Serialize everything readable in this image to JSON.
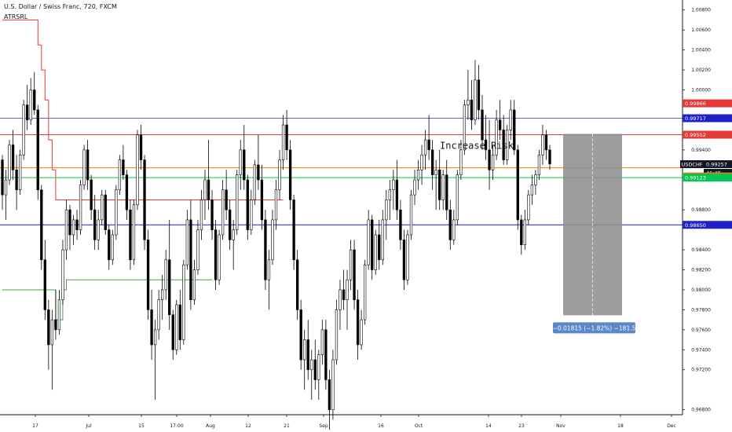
{
  "header": {
    "title": "U.S. Dollar / Swiss Franc, 720, FXCM",
    "indicator": "ATRSRL"
  },
  "colors": {
    "up_candle": "#ffffff",
    "down_candle": "#000000",
    "red_line": "#e53935",
    "green_line": "#43a047",
    "blue_line": "#1e22c8",
    "blue_line_light": "#5b5fe0",
    "orange_line": "#f57c00",
    "green_hline": "#00c853",
    "measure_box": "#8c8c8c",
    "measure_label": "#5b86c8"
  },
  "chart_data": {
    "type": "candlestick",
    "symbol": "USDCHF",
    "y_ticks": [
      "1.00800",
      "1.00600",
      "1.00400",
      "1.00200",
      "1.00000",
      "0.99866",
      "0.99717",
      "0.99552",
      "0.99400",
      "0.99257",
      "0.99221",
      "0.99123",
      "0.98800",
      "0.98650",
      "0.98400",
      "0.98200",
      "0.98000",
      "0.97800",
      "0.97600",
      "0.97400",
      "0.97200",
      "0.96800"
    ],
    "x_ticks": [
      "17",
      "Jul",
      "15",
      "17:00",
      "Aug",
      "12",
      "21",
      "Sep",
      "16",
      "Oct",
      "14",
      "23",
      "Nov",
      "18",
      "Dec"
    ],
    "ylim": [
      0.9675,
      1.009
    ],
    "price_tags": [
      {
        "label": "0.99866",
        "value": 0.99866,
        "color": "#e53935"
      },
      {
        "label": "0.99717",
        "value": 0.99717,
        "color": "#1e22c8"
      },
      {
        "label": "0.99552",
        "value": 0.99552,
        "color": "#e53935"
      },
      {
        "label": "USDCHF",
        "value": 0.99257,
        "color": "#131722",
        "is_symbol": true
      },
      {
        "label": "0.99257",
        "value": 0.99257,
        "color": "#131722"
      },
      {
        "label": "46:49",
        "value": 0.9918,
        "color": "#131722"
      },
      {
        "label": "0.99221",
        "value": 0.99221,
        "color": "#f57c00"
      },
      {
        "label": "0.99123",
        "value": 0.99123,
        "color": "#00c853"
      },
      {
        "label": "0.98650",
        "value": 0.9865,
        "color": "#1e22c8"
      }
    ],
    "horizontal_lines": [
      {
        "value": 0.99717,
        "color": "#5b5fe0"
      },
      {
        "value": 0.99552,
        "color": "#e53935"
      },
      {
        "value": 0.99221,
        "color": "#f57c00"
      },
      {
        "value": 0.99123,
        "color": "#00c853"
      },
      {
        "value": 0.9865,
        "color": "#1e22c8"
      }
    ],
    "annotation": "Increase Risk",
    "measure": {
      "label": "−0.01815 (−1.82%) −181.5",
      "top_value": 0.9956,
      "bottom_value": 0.97745
    },
    "candles": [
      [
        0.993,
        0.9935,
        0.988,
        0.9895
      ],
      [
        0.9895,
        0.992,
        0.987,
        0.991
      ],
      [
        0.991,
        0.995,
        0.9905,
        0.9945
      ],
      [
        0.9945,
        0.996,
        0.991,
        0.992
      ],
      [
        0.992,
        0.9935,
        0.988,
        0.99
      ],
      [
        0.99,
        0.994,
        0.9895,
        0.9935
      ],
      [
        0.9935,
        0.999,
        0.993,
        0.9985
      ],
      [
        0.9985,
        1.0005,
        0.996,
        0.997
      ],
      [
        0.997,
        1.0012,
        0.9965,
        1.0
      ],
      [
        1.0,
        1.0018,
        0.9975,
        0.998
      ],
      [
        0.998,
        0.9985,
        0.989,
        0.99
      ],
      [
        0.99,
        0.9905,
        0.982,
        0.983
      ],
      [
        0.983,
        0.985,
        0.977,
        0.978
      ],
      [
        0.978,
        0.979,
        0.972,
        0.9745
      ],
      [
        0.9745,
        0.978,
        0.97,
        0.977
      ],
      [
        0.977,
        0.98,
        0.975,
        0.976
      ],
      [
        0.976,
        0.98,
        0.9755,
        0.979
      ],
      [
        0.979,
        0.985,
        0.9785,
        0.984
      ],
      [
        0.984,
        0.989,
        0.983,
        0.988
      ],
      [
        0.988,
        0.9885,
        0.984,
        0.9855
      ],
      [
        0.9855,
        0.9875,
        0.9845,
        0.987
      ],
      [
        0.987,
        0.988,
        0.985,
        0.986
      ],
      [
        0.986,
        0.991,
        0.9855,
        0.9905
      ],
      [
        0.9905,
        0.9945,
        0.99,
        0.994
      ],
      [
        0.994,
        0.995,
        0.99,
        0.991
      ],
      [
        0.991,
        0.9915,
        0.987,
        0.988
      ],
      [
        0.988,
        0.9895,
        0.984,
        0.985
      ],
      [
        0.985,
        0.988,
        0.984,
        0.987
      ],
      [
        0.987,
        0.99,
        0.9865,
        0.9895
      ],
      [
        0.9895,
        0.99,
        0.9855,
        0.986
      ],
      [
        0.986,
        0.9865,
        0.982,
        0.983
      ],
      [
        0.983,
        0.986,
        0.9825,
        0.9855
      ],
      [
        0.9855,
        0.9905,
        0.985,
        0.99
      ],
      [
        0.99,
        0.9935,
        0.9895,
        0.993
      ],
      [
        0.993,
        0.9945,
        0.991,
        0.9915
      ],
      [
        0.9915,
        0.992,
        0.987,
        0.988
      ],
      [
        0.988,
        0.989,
        0.982,
        0.983
      ],
      [
        0.983,
        0.989,
        0.9825,
        0.9885
      ],
      [
        0.9885,
        0.996,
        0.988,
        0.9955
      ],
      [
        0.9955,
        0.9965,
        0.992,
        0.993
      ],
      [
        0.993,
        0.9935,
        0.984,
        0.985
      ],
      [
        0.985,
        0.986,
        0.977,
        0.978
      ],
      [
        0.978,
        0.98,
        0.973,
        0.9745
      ],
      [
        0.9745,
        0.977,
        0.969,
        0.976
      ],
      [
        0.976,
        0.98,
        0.975,
        0.979
      ],
      [
        0.979,
        0.9815,
        0.977,
        0.98
      ],
      [
        0.98,
        0.984,
        0.979,
        0.983
      ],
      [
        0.983,
        0.987,
        0.976,
        0.9775
      ],
      [
        0.9775,
        0.978,
        0.973,
        0.974
      ],
      [
        0.974,
        0.979,
        0.9735,
        0.9785
      ],
      [
        0.9785,
        0.98,
        0.974,
        0.975
      ],
      [
        0.975,
        0.983,
        0.9745,
        0.9825
      ],
      [
        0.9825,
        0.988,
        0.982,
        0.987
      ],
      [
        0.987,
        0.989,
        0.978,
        0.979
      ],
      [
        0.979,
        0.983,
        0.9785,
        0.982
      ],
      [
        0.982,
        0.987,
        0.9815,
        0.986
      ],
      [
        0.986,
        0.99,
        0.985,
        0.989
      ],
      [
        0.989,
        0.992,
        0.987,
        0.991
      ],
      [
        0.991,
        0.995,
        0.988,
        0.989
      ],
      [
        0.989,
        0.99,
        0.985,
        0.986
      ],
      [
        0.986,
        0.987,
        0.98,
        0.981
      ],
      [
        0.981,
        0.986,
        0.9805,
        0.9855
      ],
      [
        0.9855,
        0.991,
        0.985,
        0.99
      ],
      [
        0.99,
        0.992,
        0.987,
        0.988
      ],
      [
        0.988,
        0.989,
        0.984,
        0.985
      ],
      [
        0.985,
        0.987,
        0.982,
        0.986
      ],
      [
        0.986,
        0.992,
        0.9855,
        0.9915
      ],
      [
        0.9915,
        0.995,
        0.99,
        0.994
      ],
      [
        0.994,
        0.9965,
        0.99,
        0.991
      ],
      [
        0.991,
        0.9915,
        0.985,
        0.986
      ],
      [
        0.986,
        0.99,
        0.9855,
        0.989
      ],
      [
        0.989,
        0.993,
        0.9885,
        0.9925
      ],
      [
        0.9925,
        0.9955,
        0.99,
        0.991
      ],
      [
        0.991,
        0.9925,
        0.986,
        0.987
      ],
      [
        0.987,
        0.988,
        0.98,
        0.981
      ],
      [
        0.981,
        0.984,
        0.978,
        0.983
      ],
      [
        0.983,
        0.988,
        0.9825,
        0.987
      ],
      [
        0.987,
        0.991,
        0.986,
        0.99
      ],
      [
        0.99,
        0.994,
        0.989,
        0.993
      ],
      [
        0.993,
        0.9975,
        0.992,
        0.9965
      ],
      [
        0.9965,
        0.998,
        0.993,
        0.994
      ],
      [
        0.994,
        0.995,
        0.988,
        0.989
      ],
      [
        0.989,
        0.9895,
        0.982,
        0.983
      ],
      [
        0.983,
        0.984,
        0.977,
        0.978
      ],
      [
        0.978,
        0.979,
        0.972,
        0.973
      ],
      [
        0.973,
        0.976,
        0.97,
        0.975
      ],
      [
        0.975,
        0.977,
        0.971,
        0.972
      ],
      [
        0.972,
        0.974,
        0.969,
        0.973
      ],
      [
        0.973,
        0.975,
        0.97,
        0.971
      ],
      [
        0.971,
        0.974,
        0.969,
        0.9735
      ],
      [
        0.9735,
        0.977,
        0.9725,
        0.976
      ],
      [
        0.976,
        0.977,
        0.97,
        0.971
      ],
      [
        0.971,
        0.972,
        0.966,
        0.968
      ],
      [
        0.968,
        0.974,
        0.967,
        0.973
      ],
      [
        0.973,
        0.979,
        0.9725,
        0.978
      ],
      [
        0.978,
        0.981,
        0.976,
        0.98
      ],
      [
        0.98,
        0.982,
        0.978,
        0.979
      ],
      [
        0.979,
        0.982,
        0.976,
        0.981
      ],
      [
        0.981,
        0.985,
        0.98,
        0.984
      ],
      [
        0.984,
        0.985,
        0.978,
        0.979
      ],
      [
        0.979,
        0.98,
        0.973,
        0.9745
      ],
      [
        0.9745,
        0.978,
        0.974,
        0.977
      ],
      [
        0.977,
        0.983,
        0.9765,
        0.9825
      ],
      [
        0.9825,
        0.988,
        0.982,
        0.987
      ],
      [
        0.987,
        0.9875,
        0.981,
        0.982
      ],
      [
        0.982,
        0.986,
        0.9815,
        0.9855
      ],
      [
        0.9855,
        0.987,
        0.982,
        0.983
      ],
      [
        0.983,
        0.988,
        0.9825,
        0.987
      ],
      [
        0.987,
        0.99,
        0.985,
        0.989
      ],
      [
        0.989,
        0.991,
        0.987,
        0.99
      ],
      [
        0.99,
        0.992,
        0.988,
        0.991
      ],
      [
        0.991,
        0.993,
        0.987,
        0.988
      ],
      [
        0.988,
        0.989,
        0.984,
        0.985
      ],
      [
        0.985,
        0.986,
        0.98,
        0.981
      ],
      [
        0.981,
        0.986,
        0.9805,
        0.9855
      ],
      [
        0.9855,
        0.99,
        0.985,
        0.9895
      ],
      [
        0.9895,
        0.992,
        0.9885,
        0.991
      ],
      [
        0.991,
        0.993,
        0.99,
        0.992
      ],
      [
        0.992,
        0.9945,
        0.9905,
        0.9935
      ],
      [
        0.9935,
        0.996,
        0.992,
        0.995
      ],
      [
        0.995,
        0.9975,
        0.993,
        0.994
      ],
      [
        0.994,
        0.995,
        0.99,
        0.9915
      ],
      [
        0.9915,
        0.993,
        0.988,
        0.992
      ],
      [
        0.992,
        0.994,
        0.988,
        0.989
      ],
      [
        0.989,
        0.992,
        0.988,
        0.9915
      ],
      [
        0.9915,
        0.993,
        0.987,
        0.988
      ],
      [
        0.988,
        0.989,
        0.984,
        0.985
      ],
      [
        0.985,
        0.988,
        0.9845,
        0.987
      ],
      [
        0.987,
        0.992,
        0.9865,
        0.9915
      ],
      [
        0.9915,
        0.995,
        0.991,
        0.994
      ],
      [
        0.994,
        0.999,
        0.9935,
        0.9985
      ],
      [
        0.9985,
        1.002,
        0.997,
        0.999
      ],
      [
        0.999,
        1.001,
        0.996,
        0.997
      ],
      [
        0.997,
        1.003,
        0.9965,
        1.001
      ],
      [
        1.001,
        1.0025,
        0.997,
        0.998
      ],
      [
        0.998,
        0.9995,
        0.994,
        0.995
      ],
      [
        0.995,
        0.9975,
        0.993,
        0.994
      ],
      [
        0.994,
        0.997,
        0.99,
        0.992
      ],
      [
        0.992,
        0.9945,
        0.991,
        0.9935
      ],
      [
        0.9935,
        0.998,
        0.993,
        0.997
      ],
      [
        0.997,
        0.999,
        0.995,
        0.996
      ],
      [
        0.996,
        0.9975,
        0.9925,
        0.993
      ],
      [
        0.993,
        0.9965,
        0.9925,
        0.996
      ],
      [
        0.996,
        0.999,
        0.995,
        0.998
      ],
      [
        0.998,
        0.999,
        0.9935,
        0.994
      ],
      [
        0.994,
        0.9945,
        0.986,
        0.987
      ],
      [
        0.987,
        0.9875,
        0.9835,
        0.9845
      ],
      [
        0.9845,
        0.988,
        0.984,
        0.987
      ],
      [
        0.987,
        0.99,
        0.9865,
        0.9895
      ],
      [
        0.9895,
        0.9915,
        0.9885,
        0.9905
      ],
      [
        0.9905,
        0.992,
        0.9895,
        0.9915
      ],
      [
        0.9915,
        0.994,
        0.991,
        0.9935
      ],
      [
        0.9935,
        0.9965,
        0.9925,
        0.9955
      ],
      [
        0.9955,
        0.996,
        0.993,
        0.994
      ],
      [
        0.994,
        0.9945,
        0.992,
        0.9926
      ]
    ],
    "atr_red": [
      1.007,
      1.007,
      1.007,
      1.007,
      1.007,
      1.007,
      1.007,
      1.007,
      1.007,
      1.007,
      1.0045,
      1.002,
      0.999,
      0.995,
      0.992,
      0.989,
      0.989,
      0.989,
      0.989,
      0.989,
      0.989,
      0.989,
      0.989,
      0.989,
      0.989,
      0.989,
      0.989,
      0.989,
      0.989,
      0.989,
      0.989,
      0.989,
      0.989,
      0.989,
      0.989,
      0.989,
      0.989,
      0.989,
      0.989,
      0.989,
      0.989,
      0.989,
      0.989,
      0.989,
      0.989,
      0.989,
      0.989,
      0.989,
      0.989,
      0.989,
      0.989,
      0.989,
      0.989,
      0.989,
      0.989,
      0.989,
      0.989,
      0.989,
      0.989,
      0.989,
      0.989,
      0.989,
      0.989,
      0.989,
      0.989,
      0.989,
      0.989,
      0.989,
      0.989,
      0.989,
      0.989,
      0.989,
      0.989,
      0.989,
      0.989,
      0.989,
      0.989,
      0.989,
      0.989,
      0.989,
      0.991,
      0.989,
      0.9875,
      0.986,
      0.9845,
      0.9835,
      0.9835,
      0.9835,
      0.9835,
      0.9835,
      0.9835,
      0.9835,
      0.9835,
      0.9835,
      0.9835,
      0.9835,
      0.9835,
      0.9835,
      0.9835,
      0.9835,
      0.9835,
      0.9835,
      0.9835,
      0.9835,
      0.9835,
      0.9835,
      0.9835,
      0.9835,
      0.9835,
      0.9835,
      0.9835,
      0.9835,
      0.9835,
      0.9835,
      0.9835,
      0.9835,
      0.9835,
      0.9835,
      0.9835,
      0.9835,
      0.9835,
      0.9835,
      0.9835,
      0.9835,
      0.9835,
      0.9835,
      0.9835,
      0.9835,
      0.9835,
      0.9835,
      0.9835,
      0.9835,
      0.9835,
      0.9835,
      0.9835,
      0.9835,
      0.9835,
      0.9835,
      0.9835,
      0.9835,
      0.9835,
      0.9835,
      0.9835,
      0.9835,
      0.9835,
      0.9835,
      0.9835,
      0.9835,
      0.9835,
      0.9835,
      0.9835,
      0.9835,
      0.9835,
      0.9835,
      0.9835,
      0.9835
    ],
    "atr_green": [
      0.98,
      0.98,
      0.98,
      0.98,
      0.98,
      0.98,
      0.98,
      0.98,
      0.98,
      0.98,
      0.98,
      0.98,
      0.98,
      0.98,
      0.98,
      0.977,
      0.977,
      0.98,
      0.981,
      0.981,
      0.981,
      0.981,
      0.981,
      0.981,
      0.981,
      0.981,
      0.981,
      0.981,
      0.981,
      0.981,
      0.981,
      0.981,
      0.981,
      0.981,
      0.981,
      0.981,
      0.981,
      0.981,
      0.981,
      0.981,
      0.981,
      0.981,
      0.981,
      0.981,
      0.981,
      0.981,
      0.981,
      0.981,
      0.981,
      0.981,
      0.981,
      0.981,
      0.981,
      0.981,
      0.981,
      0.981,
      0.981,
      0.981,
      0.981,
      0.981,
      0.981,
      0.981,
      0.981,
      0.981,
      0.981,
      0.981,
      0.981,
      0.981,
      0.981,
      0.981,
      0.981,
      0.981,
      0.981,
      0.981,
      0.981,
      0.981,
      0.981,
      0.981,
      0.981,
      0.981,
      0.981,
      0.981,
      0.981,
      0.981,
      0.981,
      0.981,
      0.981,
      0.981,
      0.981,
      0.981,
      0.981,
      0.981,
      0.981,
      0.981,
      0.981,
      0.981,
      0.981,
      0.981,
      0.981,
      0.981,
      0.981,
      0.981,
      0.981,
      0.981,
      0.981,
      0.981,
      0.981,
      0.981,
      0.981,
      0.981,
      0.981,
      0.981,
      0.981,
      0.981,
      0.981,
      0.981,
      0.981,
      0.981,
      0.981,
      0.981,
      0.981,
      0.981,
      0.981,
      0.981,
      0.981,
      0.981,
      0.981,
      0.981,
      0.981,
      0.981,
      0.981,
      0.981,
      0.981,
      0.981,
      0.981,
      0.981,
      0.981,
      0.981,
      0.981,
      0.981,
      0.981,
      0.981,
      0.981,
      0.981,
      0.981,
      0.981,
      0.981,
      0.981,
      0.981,
      0.981,
      0.981,
      0.981,
      0.981,
      0.981,
      0.981,
      0.981,
      0.981,
      0.981,
      0.981
    ]
  }
}
